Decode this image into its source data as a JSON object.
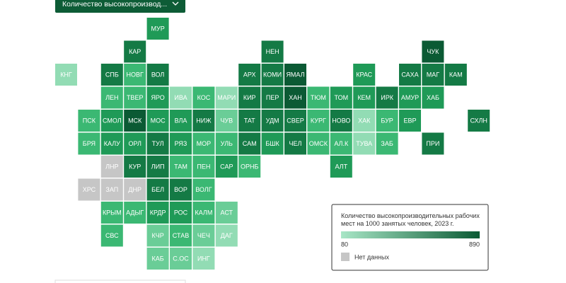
{
  "dropdown": "Количество высокопроизвод...",
  "tiles": [
    {
      "label": "МУР",
      "color": "#1f9a57"
    },
    {
      "label": "КАР",
      "color": "#147a45"
    },
    {
      "label": "НЕН",
      "color": "#147a45"
    },
    {
      "label": "ЧУК",
      "color": "#0b5a34"
    },
    {
      "label": "КНГ",
      "color": "#92dcb4"
    },
    {
      "label": "СПБ",
      "color": "#147a45"
    },
    {
      "label": "НОВГ",
      "color": "#3bb873"
    },
    {
      "label": "ВОЛ",
      "color": "#147a45"
    },
    {
      "label": "АРХ",
      "color": "#147a45"
    },
    {
      "label": "КОМИ",
      "color": "#147a45"
    },
    {
      "label": "ЯМАЛ",
      "color": "#0b5a34"
    },
    {
      "label": "КРАС",
      "color": "#1f9a57"
    },
    {
      "label": "САХА",
      "color": "#147a45"
    },
    {
      "label": "МАГ",
      "color": "#147a45"
    },
    {
      "label": "КАМ",
      "color": "#147a45"
    },
    {
      "label": "ЛЕН",
      "color": "#3bb873"
    },
    {
      "label": "ТВЕР",
      "color": "#3bb873"
    },
    {
      "label": "ЯРО",
      "color": "#1f9a57"
    },
    {
      "label": "ИВА",
      "color": "#92dcb4"
    },
    {
      "label": "КОС",
      "color": "#3bb873"
    },
    {
      "label": "МАРИ",
      "color": "#92dcb4"
    },
    {
      "label": "КИР",
      "color": "#147a45"
    },
    {
      "label": "ПЕР",
      "color": "#147a45"
    },
    {
      "label": "ХАН",
      "color": "#0b5a34"
    },
    {
      "label": "ТЮМ",
      "color": "#3bb873"
    },
    {
      "label": "ТОМ",
      "color": "#1f9a57"
    },
    {
      "label": "КЕМ",
      "color": "#1f9a57"
    },
    {
      "label": "ИРК",
      "color": "#147a45"
    },
    {
      "label": "АМУР",
      "color": "#1f9a57"
    },
    {
      "label": "ХАБ",
      "color": "#1f9a57"
    },
    {
      "label": "ПСК",
      "color": "#3bb873"
    },
    {
      "label": "СМОЛ",
      "color": "#1f9a57"
    },
    {
      "label": "МСК",
      "color": "#0b5a34"
    },
    {
      "label": "МОС",
      "color": "#1f9a57"
    },
    {
      "label": "ВЛА",
      "color": "#1f9a57"
    },
    {
      "label": "НИЖ",
      "color": "#147a45"
    },
    {
      "label": "ЧУВ",
      "color": "#6acd97"
    },
    {
      "label": "ТАТ",
      "color": "#147a45"
    },
    {
      "label": "УДМ",
      "color": "#147a45"
    },
    {
      "label": "СВЕР",
      "color": "#147a45"
    },
    {
      "label": "КУРГ",
      "color": "#3bb873"
    },
    {
      "label": "НОВО",
      "color": "#147a45"
    },
    {
      "label": "ХАК",
      "color": "#92dcb4"
    },
    {
      "label": "БУР",
      "color": "#3bb873"
    },
    {
      "label": "ЕВР",
      "color": "#1f9a57"
    },
    {
      "label": "СХЛН",
      "color": "#147a45"
    },
    {
      "label": "БРЯ",
      "color": "#3bb873"
    },
    {
      "label": "КАЛУ",
      "color": "#1f9a57"
    },
    {
      "label": "ОРЛ",
      "color": "#1f9a57"
    },
    {
      "label": "ТУЛ",
      "color": "#147a45"
    },
    {
      "label": "РЯЗ",
      "color": "#1f9a57"
    },
    {
      "label": "МОР",
      "color": "#3bb873"
    },
    {
      "label": "УЛЬ",
      "color": "#3bb873"
    },
    {
      "label": "САМ",
      "color": "#147a45"
    },
    {
      "label": "БШК",
      "color": "#1f9a57"
    },
    {
      "label": "ЧЕЛ",
      "color": "#147a45"
    },
    {
      "label": "ОМСК",
      "color": "#3bb873"
    },
    {
      "label": "АЛ.К",
      "color": "#3bb873"
    },
    {
      "label": "ТУВА",
      "color": "#92dcb4"
    },
    {
      "label": "ЗАБ",
      "color": "#3bb873"
    },
    {
      "label": "ПРИ",
      "color": "#147a45"
    },
    {
      "label": "ЛНР",
      "color": "#c6c6c6"
    },
    {
      "label": "КУР",
      "color": "#147a45"
    },
    {
      "label": "ЛИП",
      "color": "#147a45"
    },
    {
      "label": "ТАМ",
      "color": "#3bb873"
    },
    {
      "label": "ПЕН",
      "color": "#3bb873"
    },
    {
      "label": "САР",
      "color": "#1f9a57"
    },
    {
      "label": "ОРНБ",
      "color": "#3bb873"
    },
    {
      "label": "АЛТ",
      "color": "#1f9a57"
    },
    {
      "label": "ХРС",
      "color": "#c6c6c6"
    },
    {
      "label": "ЗАП",
      "color": "#c6c6c6"
    },
    {
      "label": "ДНР",
      "color": "#c6c6c6"
    },
    {
      "label": "БЕЛ",
      "color": "#147a45"
    },
    {
      "label": "ВОР",
      "color": "#147a45"
    },
    {
      "label": "ВОЛГ",
      "color": "#3bb873"
    },
    {
      "label": "КРЫМ",
      "color": "#3bb873"
    },
    {
      "label": "АДЫГ",
      "color": "#3bb873"
    },
    {
      "label": "КРДР",
      "color": "#1f9a57"
    },
    {
      "label": "РОС",
      "color": "#1f9a57"
    },
    {
      "label": "КАЛМ",
      "color": "#3bb873"
    },
    {
      "label": "АСТ",
      "color": "#6acd97"
    },
    {
      "label": "СВС",
      "color": "#3bb873"
    },
    {
      "label": "КЧР",
      "color": "#6acd97"
    },
    {
      "label": "СТАВ",
      "color": "#3bb873"
    },
    {
      "label": "ЧЕЧ",
      "color": "#6acd97"
    },
    {
      "label": "ДАГ",
      "color": "#92dcb4"
    },
    {
      "label": "КАБ",
      "color": "#6acd97"
    },
    {
      "label": "С.ОС",
      "color": "#6acd97"
    },
    {
      "label": "ИНГ",
      "color": "#92dcb4"
    }
  ],
  "legend": {
    "title": "Количество высокопроизводительных рабочих мест на 1000 занятых человек, 2023 г.",
    "min": 80,
    "max": 890,
    "min_color": "#a8e6c6",
    "max_color": "#0b5a34",
    "no_data": "Нет данных",
    "no_data_color": "#c6c6c6"
  }
}
